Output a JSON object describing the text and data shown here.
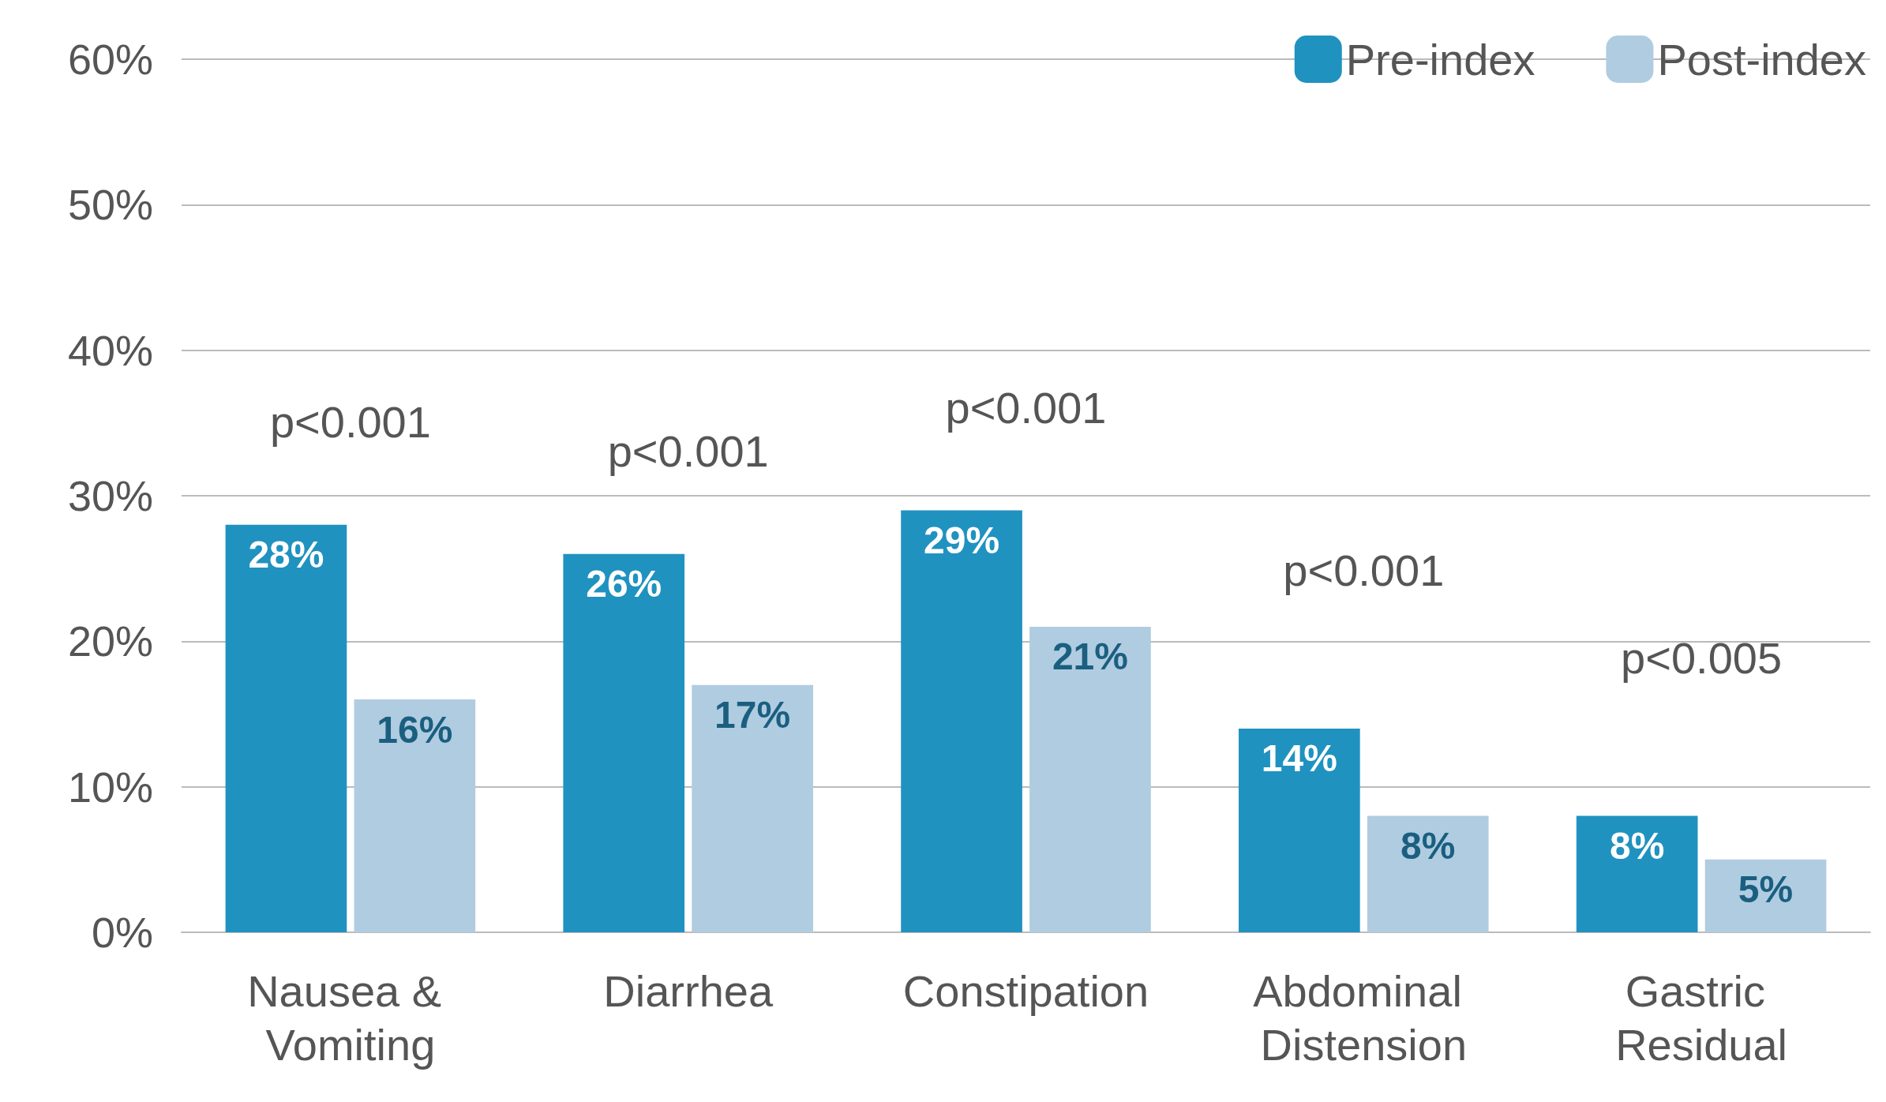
{
  "chart_data": {
    "type": "bar",
    "categories": [
      "Nausea & Vomiting",
      "Diarrhea",
      "Constipation",
      "Abdominal Distension",
      "Gastric Residual"
    ],
    "series": [
      {
        "name": "Pre-index",
        "color": "#2092c0",
        "values": [
          28,
          26,
          29,
          14,
          8
        ],
        "value_labels": [
          "28%",
          "26%",
          "29%",
          "14%",
          "8%"
        ]
      },
      {
        "name": "Post-index",
        "color": "#b0cce1",
        "values": [
          16,
          17,
          21,
          8,
          5
        ],
        "value_labels": [
          "16%",
          "17%",
          "21%",
          "8%",
          "5%"
        ]
      }
    ],
    "ylim": [
      0,
      60
    ],
    "yticks": [
      {
        "value": 0,
        "label": "0%"
      },
      {
        "value": 10,
        "label": "10%"
      },
      {
        "value": 20,
        "label": "20%"
      },
      {
        "value": 30,
        "label": "30%"
      },
      {
        "value": 40,
        "label": "40%"
      },
      {
        "value": 50,
        "label": "50%"
      },
      {
        "value": 60,
        "label": "60%"
      }
    ],
    "annotations": [
      "p<0.001",
      "p<0.001",
      "p<0.001",
      "p<0.001",
      "p<0.005"
    ],
    "grid": "y",
    "legend": "top right"
  }
}
